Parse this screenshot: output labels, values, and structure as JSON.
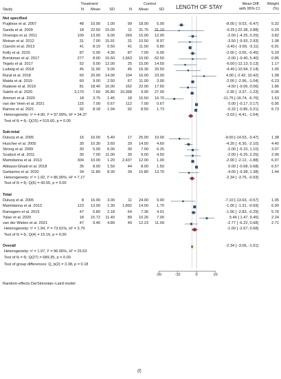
{
  "chart_data": {
    "type": "forest",
    "title": "LENGTH OF STAY",
    "columns": {
      "study": "Study",
      "treatment": "Treatment",
      "control": "Control",
      "n": "N",
      "mean": "Mean",
      "sd": "SD",
      "effect": "Mean Diff.",
      "effect_ci": "with 95% CI",
      "weight": "Weight",
      "weight_unit": "(%)"
    },
    "x_axis": {
      "ticks": [
        -20,
        -10,
        0,
        10
      ],
      "range": [
        -24,
        16
      ],
      "null_line": 0
    },
    "subgroups": [
      {
        "name": "Not specified",
        "studies": [
          {
            "study": "Pugliese et al. 2007",
            "tn": "48",
            "tm": "10.00",
            "tsd": "1.00",
            "cn": "99",
            "cm": "18.00",
            "csd": "5.00",
            "md": -8.0,
            "lo": -9.53,
            "hi": -6.47,
            "label": "-8.00 [ -9.53, -6.47]",
            "w": "5.32"
          },
          {
            "study": "Sarela et al. 2009",
            "tn": "18",
            "tm": "22.50",
            "tsd": "15.00",
            "cn": "11",
            "cm": "31.75",
            "csd": "21.10",
            "md": -9.25,
            "lo": -22.38,
            "hi": 3.88,
            "label": "-9.25 [-22.38, 3.88]",
            "w": "0.29"
          },
          {
            "study": "Orsengio et al. 2011",
            "tn": "109",
            "tm": "13.00",
            "tsd": "9.00",
            "cn": "269",
            "cm": "15.00",
            "csd": "12.00",
            "md": -2.0,
            "lo": -4.25,
            "hi": 0.25,
            "label": "-2.00 [ -4.25, 0.25]",
            "w": "3.82"
          },
          {
            "study": "Moisan et al. 2012",
            "tn": "31",
            "tm": "7.00",
            "tsd": "15.91",
            "cn": "31",
            "cm": "10.50",
            "csd": "8.97",
            "md": -3.5,
            "lo": -9.93,
            "hi": 2.93,
            "label": "-3.50 [ -9.93, 2.93]",
            "w": "1.08"
          },
          {
            "study": "Cianchi et al. 2013",
            "tn": "41",
            "tm": "8.10",
            "tsd": "0.50",
            "cn": "41",
            "cm": "11.50",
            "csd": "0.80",
            "md": -3.4,
            "lo": -3.69,
            "hi": -3.11,
            "label": "-3.40 [ -3.69, -3.11]",
            "w": "6.91"
          },
          {
            "study": "Kelly et al. 2015",
            "tn": "87",
            "tm": "5.00",
            "tsd": "4.30",
            "cn": "87",
            "cm": "7.00",
            "csd": "6.00",
            "md": -2.0,
            "lo": -3.55,
            "hi": -0.45,
            "label": "-2.00 [ -3.55, -0.45]",
            "w": "5.29"
          },
          {
            "study": "Brenkman et al. 2017",
            "tn": "277",
            "tm": "8.00",
            "tsd": "15.50",
            "cn": "1,663",
            "cm": "10.00",
            "csd": "62.50",
            "md": -2.0,
            "lo": -9.4,
            "hi": 5.4,
            "label": "-2.00 [ -9.40, 5.40]",
            "w": "0.85"
          },
          {
            "study": "Tegels et al. 2017",
            "tn": "52",
            "tm": "9.00",
            "tsd": "12.00",
            "cn": "25",
            "cm": "15.00",
            "csd": "14.50",
            "md": -6.0,
            "lo": -12.13,
            "hi": 0.13,
            "label": "-6.00 [-12.13, 0.13]",
            "w": "1.17"
          },
          {
            "study": "Ludwig et al. 2018",
            "tn": "45",
            "tm": "11.90",
            "tsd": "9.00",
            "cn": "45",
            "cm": "16.30",
            "csd": "20.50",
            "md": -4.4,
            "lo": -10.94,
            "hi": 2.14,
            "label": "-4.40 [-10.94, 2.14]",
            "w": "1.05"
          },
          {
            "study": "Rural et al. 2018",
            "tn": "60",
            "tm": "20.00",
            "tsd": "14.00",
            "cn": "104",
            "cm": "16.00",
            "csd": "23.00",
            "md": 4.0,
            "lo": -2.42,
            "hi": 10.42,
            "label": "4.00 [ -2.42, 10.42]",
            "w": "1.08"
          },
          {
            "study": "Maida et al. 2019",
            "tn": "60",
            "tm": "9.00",
            "tsd": "2.50",
            "cn": "67",
            "cm": "11.00",
            "csd": "3.00",
            "md": -2.0,
            "lo": -2.96,
            "hi": -1.04,
            "label": "-2.00 [ -2.96, -1.04]",
            "w": "6.23"
          },
          {
            "study": "Raakow et al. 2019",
            "tn": "81",
            "tm": "18.40",
            "tsd": "16.00",
            "cn": "162",
            "cm": "22.90",
            "csd": "17.60",
            "md": -4.5,
            "lo": -9.06,
            "hi": 0.06,
            "label": "-4.50 [ -9.06, 0.06]",
            "w": "1.86"
          },
          {
            "study": "Salehi et al. 2020",
            "tn": "3,170",
            "tm": "7.60",
            "tsd": "26.80",
            "cn": "10,368",
            "cm": "9.90",
            "csd": "27.00",
            "md": -2.3,
            "lo": -3.37,
            "hi": -1.23,
            "label": "-2.30 [ -3.37, -1.23]",
            "w": "6.06"
          },
          {
            "study": "Ammori et al. 2020",
            "tn": "18",
            "tm": "3.75",
            "tsd": "1.45",
            "cn": "18",
            "cm": "15.50",
            "csd": "10.70",
            "md": -11.75,
            "lo": -16.74,
            "hi": -6.76,
            "label": "-11.75 [-16.74, -6.76]",
            "w": "1.63"
          },
          {
            "study": "van der Veen et al. 2021",
            "tn": "115",
            "tm": "7.00",
            "tsd": "0.67",
            "cn": "112",
            "cm": "7.00",
            "csd": "0.67",
            "md": 0.0,
            "lo": -0.17,
            "hi": 0.17,
            "label": "0.00 [ -0.17, 0.17]",
            "w": "6.95"
          },
          {
            "study": "Ramos et al. 2021",
            "tn": "92",
            "tm": "8.18",
            "tsd": "1.94",
            "cn": "92",
            "cm": "8.50",
            "csd": "1.73",
            "md": -0.32,
            "lo": -0.86,
            "hi": 0.21,
            "label": "-0.32 [ -0.86, 0.21]",
            "w": "6.73"
          }
        ],
        "pooled": {
          "md": -3.03,
          "lo": -4.41,
          "hi": -1.64,
          "label": "-3.03 [ -4.41, -1.64]"
        },
        "heterogeneity": "Heterogeneity: τ² = 4.90, I² = 97.09%, H² = 34.37",
        "test": "Test of θᵢ = θⱼ: Q(15) = 515.60, p = 0.00"
      },
      {
        "name": "Sub-total",
        "studies": [
          {
            "study": "Dulucq et al. 2005",
            "tn": "16",
            "tm": "16.00",
            "tsd": "5.40",
            "cn": "17",
            "cm": "25.00",
            "csd": "10.00",
            "md": -9.0,
            "lo": -14.53,
            "hi": -3.47,
            "label": "-9.00 [-14.53, -3.47]",
            "w": "1.38"
          },
          {
            "study": "Huscher et al. 2005",
            "tn": "30",
            "tm": "10.30",
            "tsd": "3.60",
            "cn": "29",
            "cm": "14.50",
            "csd": "4.60",
            "md": -4.2,
            "lo": -6.3,
            "hi": -2.1,
            "label": "-4.20 [ -6.30, -2.10]",
            "w": "4.40"
          },
          {
            "study": "Strong et al. 2009",
            "tn": "30",
            "tm": "5.00",
            "tsd": "6.00",
            "cn": "30",
            "cm": "7.00",
            "csd": "6.25",
            "md": -2.0,
            "lo": -5.1,
            "hi": 1.1,
            "label": "-2.00 [ -5.10, 1.10]",
            "w": "3.07"
          },
          {
            "study": "Scatizzi et al. 2011",
            "tn": "30",
            "tm": "7.00",
            "tsd": "11.00",
            "cn": "30",
            "cm": "9.00",
            "csd": "4.50",
            "md": -2.0,
            "lo": -6.25,
            "hi": 2.25,
            "label": "-2.00 [ -6.25, 2.25]",
            "w": "2.06"
          },
          {
            "study": "Mamidanna et al. 2013",
            "tn": "304",
            "tm": "10.00",
            "tsd": "1.20",
            "cn": "2,437",
            "cm": "12.00",
            "csd": "1.00",
            "md": -2.0,
            "lo": -2.12,
            "hi": -1.88,
            "label": "-2.00 [ -2.12, -1.88]",
            "w": "6.97"
          },
          {
            "study": "Abbassi-Ghadi et al. 2018",
            "tn": "35",
            "tm": "8.00",
            "tsd": "1.50",
            "cn": "44",
            "cm": "8.00",
            "csd": "1.50",
            "md": 0.0,
            "lo": -0.68,
            "hi": 0.68,
            "label": "0.00 [ -0.68, 0.68]",
            "w": "6.57"
          },
          {
            "study": "Garbarino et al. 2020",
            "tn": "34",
            "tm": "11.80",
            "tsd": "8.30",
            "cn": "34",
            "cm": "15.80",
            "csd": "13.70",
            "md": -4.0,
            "lo": -9.38,
            "hi": 1.38,
            "label": "-4.00 [ -9.38, 1.38]",
            "w": "1.44"
          }
        ],
        "pooled": {
          "md": -2.34,
          "lo": -3.76,
          "hi": -0.93,
          "label": "-2.34 [ -3.76, -0.93]"
        },
        "heterogeneity": "Heterogeneity: τ² = 1.92, I² = 86.06%, H² = 7.17",
        "test": "Test of θᵢ = θⱼ: Q(6) = 43.05, p = 0.00"
      },
      {
        "name": "Total",
        "studies": [
          {
            "study": "Dulucq et al. 2005",
            "tn": "8",
            "tm": "16.90",
            "tsd": "3.00",
            "cn": "11",
            "cm": "24.00",
            "csd": "9.00",
            "md": -7.1,
            "lo": -13.63,
            "hi": -0.57,
            "label": "-7.10 [-13.63, -0.57]",
            "w": "1.05"
          },
          {
            "study": "Mamidanna et al. 2013",
            "tn": "123",
            "tm": "13.00",
            "tsd": "1.30",
            "cn": "1,892",
            "cm": "14.00",
            "csd": "1.70",
            "md": -1.0,
            "lo": -1.31,
            "hi": -0.69,
            "label": "-1.00 [ -1.31, -0.69]",
            "w": "6.90"
          },
          {
            "study": "Ramagem et al. 2015",
            "tn": "47",
            "tm": "5.80",
            "tsd": "2.18",
            "cn": "64",
            "cm": "7.36",
            "csd": "4.01",
            "md": -1.56,
            "lo": -2.83,
            "hi": -0.29,
            "label": "-1.56 [ -2.83, -0.29]",
            "w": "5.76"
          },
          {
            "study": "Yalav et al. 2020",
            "tn": "18",
            "tm": "15.72",
            "tsd": "11.40",
            "cn": "89",
            "cm": "10.26",
            "csd": "7.00",
            "md": 5.46,
            "lo": 1.47,
            "hi": 9.45,
            "label": "5.46 [ 1.47, 9.45]",
            "w": "2.24"
          },
          {
            "study": "van der Wielen et al. 2021",
            "tn": "47",
            "tm": "9.46",
            "tsd": "4.89",
            "cn": "49",
            "cm": "12.23",
            "csd": "11.09",
            "md": -2.77,
            "lo": -6.22,
            "hi": 0.68,
            "label": "-2.77 [ -6.22, 0.68]",
            "w": "2.71"
          }
        ],
        "pooled": {
          "md": -1.0,
          "lo": -2.67,
          "hi": 0.68,
          "label": "-1.00 [ -2.67, 0.68]"
        },
        "heterogeneity": "Heterogeneity: τ² = 1.94, I² = 73.61%, H² = 3.79",
        "test": "Test of θᵢ = θⱼ: Q(4) = 15.16, p = 0.00"
      }
    ],
    "overall": {
      "name": "Overall",
      "md": -2.34,
      "lo": -3.06,
      "hi": -1.61,
      "label": "-2.34 [ -3.06, -1.61]",
      "heterogeneity": "Heterogeneity: τ² = 1.97, I² = 96.06%, H² = 25.53",
      "test": "Test of θᵢ = θⱼ: Q(27) = 689.35, p = 0.00",
      "group_test": "Test of group differences: Q_b(2) = 3.38, p = 0.18"
    },
    "footnote": "Random-effects DerSimonian–Laird model",
    "colors": {
      "square": "#1f4e79",
      "diamond_subgroup": "#a52a2a",
      "diamond_overall": "#6b8e23",
      "ci_line": "#1f4e79",
      "null_line": "#888888"
    }
  },
  "caption": "(f)"
}
